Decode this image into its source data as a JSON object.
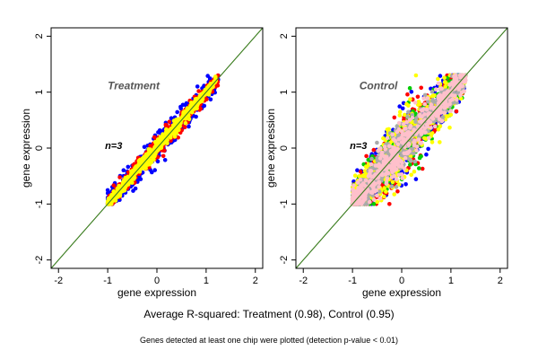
{
  "figure": {
    "summary": "Average R-squared: Treatment (0.98), Control (0.95)",
    "note": "Genes detected at least one chip were plotted (detection p-value < 0.01)"
  },
  "chart_data": [
    {
      "type": "scatter",
      "title": "Treatment",
      "annotation": "n=3",
      "xlabel": "gene expression",
      "ylabel": "gene expression",
      "xlim": [
        -2.15,
        2.15
      ],
      "ylim": [
        -2.15,
        2.15
      ],
      "xticks": [
        -2,
        -1,
        0,
        1,
        2
      ],
      "yticks": [
        -2,
        -1,
        0,
        1,
        2
      ],
      "grid": false,
      "reference_lines": [
        {
          "slope": 1,
          "intercept": 0,
          "color": "#cc4400"
        },
        {
          "slope": 1,
          "intercept": 0,
          "color": "#2b8a2b"
        }
      ],
      "series": [
        {
          "color": "#0000ff",
          "x_range": [
            -1.0,
            1.25
          ],
          "spread": 0.14
        },
        {
          "color": "#ff0000",
          "x_range": [
            -1.0,
            1.25
          ],
          "spread": 0.1
        },
        {
          "color": "#ffff00",
          "x_range": [
            -1.0,
            1.2
          ],
          "spread": 0.07
        }
      ]
    },
    {
      "type": "scatter",
      "title": "Control",
      "annotation": "n=3",
      "xlabel": "gene expression",
      "ylabel": "gene expression",
      "xlim": [
        -2.15,
        2.15
      ],
      "ylim": [
        -2.15,
        2.15
      ],
      "xticks": [
        -2,
        -1,
        0,
        1,
        2
      ],
      "yticks": [
        -2,
        -1,
        0,
        1,
        2
      ],
      "grid": false,
      "reference_lines": [
        {
          "slope": 1,
          "intercept": 0,
          "color": "#cc4400"
        },
        {
          "slope": 1,
          "intercept": 0,
          "color": "#2b8a2b"
        }
      ],
      "series": [
        {
          "color": "#0000ff",
          "x_range": [
            -1.0,
            1.3
          ],
          "spread": 0.32
        },
        {
          "color": "#ff0000",
          "x_range": [
            -1.0,
            1.3
          ],
          "spread": 0.28
        },
        {
          "color": "#00cc00",
          "x_range": [
            -1.0,
            1.3
          ],
          "spread": 0.27
        },
        {
          "color": "#ffff00",
          "x_range": [
            -1.0,
            1.3
          ],
          "spread": 0.3
        },
        {
          "color": "#aaaaaa",
          "x_range": [
            -1.0,
            1.3
          ],
          "spread": 0.22
        },
        {
          "color": "#ffc0cb",
          "x_range": [
            -1.0,
            1.3
          ],
          "spread": 0.2
        }
      ]
    }
  ]
}
